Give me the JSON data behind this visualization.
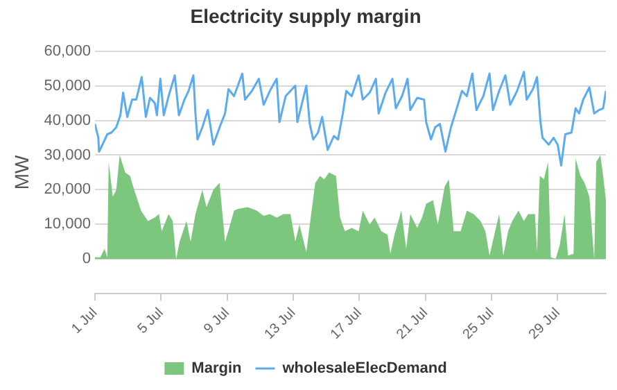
{
  "chart_data": {
    "type": "area",
    "title": "Electricity supply margin",
    "ylabel": "MW",
    "xlim": [
      "--07-01T00:00",
      "--07-31T22:00"
    ],
    "ylim": [
      -10000,
      60000
    ],
    "yticks": [
      {
        "value": 0,
        "label": "0"
      },
      {
        "value": 10000,
        "label": "10,000"
      },
      {
        "value": 20000,
        "label": "20,000"
      },
      {
        "value": 30000,
        "label": "30,000"
      },
      {
        "value": 40000,
        "label": "40,000"
      },
      {
        "value": 50000,
        "label": "50,000"
      },
      {
        "value": 60000,
        "label": "60,000"
      }
    ],
    "xticks": [
      {
        "value": "--07-01",
        "label": "1 Jul"
      },
      {
        "value": "--07-05",
        "label": "5 Jul"
      },
      {
        "value": "--07-09",
        "label": "9 Jul"
      },
      {
        "value": "--07-13",
        "label": "13 Jul"
      },
      {
        "value": "--07-17",
        "label": "17 Jul"
      },
      {
        "value": "--07-21",
        "label": "21 Jul"
      },
      {
        "value": "--07-25",
        "label": "25 Jul"
      },
      {
        "value": "--07-29",
        "label": "29 Jul"
      }
    ],
    "grid": "y",
    "legend": "bottom",
    "marker": "none",
    "series": [
      {
        "name": "Margin",
        "color": "#7cc67e",
        "x": [
          "--07-01T00:00",
          "--07-01T08:00",
          "--07-01T14:00",
          "--07-01T18:00",
          "--07-01T20:00",
          "--07-02T02:00",
          "--07-02T07:00",
          "--07-02T12:00",
          "--07-02T20:00",
          "--07-03T03:00",
          "--07-03T09:00",
          "--07-03T19:00",
          "--07-04T05:00",
          "--07-04T15:00",
          "--07-04T21:00",
          "--07-05T01:00",
          "--07-05T11:00",
          "--07-05T17:00",
          "--07-05T22:00",
          "--07-06T03:00",
          "--07-06T13:00",
          "--07-06T19:00",
          "--07-07T02:00",
          "--07-07T12:00",
          "--07-07T18:00",
          "--07-08T04:00",
          "--07-08T13:00",
          "--07-08T21:00",
          "--07-09T03:00",
          "--07-09T10:00",
          "--07-09T16:00",
          "--07-10T06:00",
          "--07-10T19:00",
          "--07-11T05:00",
          "--07-11T14:00",
          "--07-12T00:00",
          "--07-12T10:00",
          "--07-12T20:00",
          "--07-13T03:00",
          "--07-13T09:00",
          "--07-13T19:00",
          "--07-14T02:00",
          "--07-14T08:00",
          "--07-14T15:00",
          "--07-14T21:00",
          "--07-15T04:00",
          "--07-15T14:00",
          "--07-15T20:00",
          "--07-16T03:00",
          "--07-16T13:00",
          "--07-16T23:00",
          "--07-17T05:00",
          "--07-17T15:00",
          "--07-17T22:00",
          "--07-18T08:00",
          "--07-18T17:00",
          "--07-18T21:00",
          "--07-19T03:00",
          "--07-19T13:00",
          "--07-19T20:00",
          "--07-20T02:00",
          "--07-20T12:00",
          "--07-20T19:00",
          "--07-21T01:00",
          "--07-21T11:00",
          "--07-21T18:00",
          "--07-22T04:00",
          "--07-22T10:00",
          "--07-22T17:00",
          "--07-23T03:00",
          "--07-23T12:00",
          "--07-23T22:00",
          "--07-24T08:00",
          "--07-24T15:00",
          "--07-24T21:00",
          "--07-25T04:00",
          "--07-25T11:00",
          "--07-25T17:00",
          "--07-26T00:00",
          "--07-26T06:00",
          "--07-26T15:00",
          "--07-26T23:00",
          "--07-27T05:00",
          "--07-27T15:00",
          "--07-27T18:00",
          "--07-27T22:00",
          "--07-28T04:00",
          "--07-28T10:00",
          "--07-28T14:00",
          "--07-28T21:00",
          "--07-29T03:00",
          "--07-29T10:00",
          "--07-29T15:00",
          "--07-29T23:00",
          "--07-30T02:00",
          "--07-30T09:00",
          "--07-30T15:00",
          "--07-30T22:00",
          "--07-31T05:00",
          "--07-31T08:00",
          "--07-31T14:00",
          "--07-31T18:00",
          "--07-31T22:00"
        ],
        "values": [
          500,
          500,
          3000,
          500,
          28000,
          18000,
          20000,
          30000,
          25000,
          24000,
          20000,
          14000,
          11000,
          12000,
          13000,
          8000,
          13000,
          11000,
          0,
          5000,
          11000,
          5000,
          13000,
          20000,
          15000,
          20000,
          22000,
          5000,
          9000,
          14000,
          14500,
          15000,
          14000,
          12500,
          13000,
          12000,
          13000,
          13000,
          5000,
          10000,
          2000,
          13000,
          22000,
          24000,
          23000,
          25000,
          24000,
          12000,
          8000,
          9000,
          8000,
          14000,
          10000,
          12000,
          8000,
          7000,
          1500,
          7000,
          14000,
          3000,
          13000,
          9000,
          12000,
          16000,
          17000,
          10000,
          21000,
          23000,
          8000,
          8000,
          14000,
          13000,
          11000,
          8000,
          1000,
          7000,
          13000,
          1000,
          8000,
          11000,
          14000,
          11000,
          13000,
          13000,
          2000,
          24000,
          23000,
          28000,
          500,
          0,
          4000,
          13000,
          1000,
          1500,
          29000,
          24000,
          22000,
          18000,
          0,
          28000,
          30000,
          24000,
          17000
        ]
      },
      {
        "name": "wholesaleElecDemand",
        "type": "line",
        "color": "#5aabf0",
        "x": [
          "--07-01T00:00",
          "--07-01T05:00",
          "--07-01T06:00",
          "--07-01T11:00",
          "--07-01T18:00",
          "--07-02T00:00",
          "--07-02T07:00",
          "--07-02T13:00",
          "--07-02T17:00",
          "--07-02T23:00",
          "--07-03T06:00",
          "--07-03T12:00",
          "--07-03T20:00",
          "--07-04T02:00",
          "--07-04T08:00",
          "--07-04T15:00",
          "--07-04T18:00",
          "--07-04T23:00",
          "--07-05T04:00",
          "--07-05T11:00",
          "--07-05T20:00",
          "--07-06T02:00",
          "--07-06T10:00",
          "--07-06T16:00",
          "--07-06T23:00",
          "--07-07T02:00",
          "--07-07T05:00",
          "--07-07T12:00",
          "--07-07T20:00",
          "--07-08T04:00",
          "--07-08T14:00",
          "--07-08T21:00",
          "--07-09T02:00",
          "--07-09T10:00",
          "--07-09T22:00",
          "--07-10T02:00",
          "--07-10T12:00",
          "--07-10T22:00",
          "--07-11T05:00",
          "--07-11T14:00",
          "--07-12T00:00",
          "--07-12T04:00",
          "--07-12T13:00",
          "--07-13T03:00",
          "--07-13T06:00",
          "--07-13T19:00",
          "--07-14T00:00",
          "--07-14T05:00",
          "--07-14T12:00",
          "--07-14T18:00",
          "--07-15T02:00",
          "--07-15T11:00",
          "--07-15T17:00",
          "--07-16T00:00",
          "--07-16T05:00",
          "--07-16T13:00",
          "--07-16T23:00",
          "--07-17T05:00",
          "--07-17T15:00",
          "--07-18T00:00",
          "--07-18T04:00",
          "--07-18T14:00",
          "--07-19T00:00",
          "--07-19T05:00",
          "--07-19T14:00",
          "--07-19T22:00",
          "--07-20T02:00",
          "--07-20T12:00",
          "--07-20T22:00",
          "--07-21T01:00",
          "--07-21T08:00",
          "--07-21T14:00",
          "--07-21T21:00",
          "--07-22T05:00",
          "--07-22T13:00",
          "--07-22T23:00",
          "--07-23T05:00",
          "--07-23T12:00",
          "--07-23T20:00",
          "--07-24T02:00",
          "--07-24T12:00",
          "--07-24T21:00",
          "--07-25T02:00",
          "--07-25T11:00",
          "--07-25T20:00",
          "--07-26T03:00",
          "--07-26T13:00",
          "--07-26T23:00",
          "--07-27T03:00",
          "--07-27T12:00",
          "--07-27T18:00",
          "--07-27T23:00",
          "--07-28T02:00",
          "--07-28T11:00",
          "--07-28T18:00",
          "--07-29T00:00",
          "--07-29T05:00",
          "--07-29T11:00",
          "--07-29T20:00",
          "--07-30T02:00",
          "--07-30T07:00",
          "--07-30T13:00",
          "--07-30T22:00",
          "--07-31T05:00",
          "--07-31T12:00",
          "--07-31T18:00",
          "--07-31T22:00"
        ],
        "values": [
          39000,
          35000,
          31000,
          33000,
          36000,
          36500,
          38000,
          41500,
          48000,
          41000,
          46000,
          46000,
          52500,
          41000,
          46500,
          45000,
          41500,
          52000,
          41500,
          47000,
          53000,
          41500,
          46000,
          48500,
          53000,
          42000,
          34500,
          38000,
          43000,
          33000,
          38500,
          42000,
          49000,
          47000,
          53500,
          46000,
          48500,
          52000,
          44500,
          48500,
          52000,
          39500,
          47000,
          50000,
          39500,
          50000,
          39000,
          34500,
          36500,
          41000,
          31500,
          35500,
          34500,
          42000,
          48500,
          47000,
          53000,
          46000,
          48000,
          52000,
          42000,
          48000,
          52000,
          43500,
          47000,
          52000,
          43000,
          46500,
          46000,
          39500,
          34500,
          38000,
          39000,
          31000,
          38000,
          44500,
          48500,
          47000,
          53500,
          43000,
          47000,
          53500,
          43000,
          48500,
          53000,
          44500,
          48500,
          54000,
          46000,
          49000,
          52500,
          39500,
          35000,
          33000,
          35000,
          33000,
          27000,
          36000,
          36500,
          43500,
          42000,
          46000,
          49500,
          42000,
          43000,
          43500,
          48500
        ]
      }
    ]
  }
}
